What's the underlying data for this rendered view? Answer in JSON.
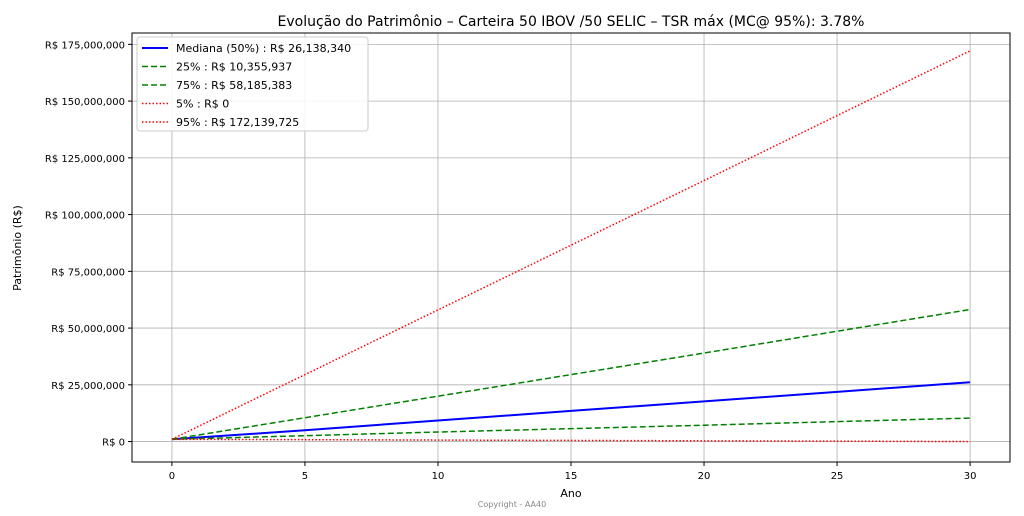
{
  "chart_data": {
    "type": "line",
    "title": "Evolução do Patrimônio – Carteira 50 IBOV /50 SELIC – TSR máx (MC@ 95%): 3.78%",
    "xlabel": "Ano",
    "ylabel": "Patrimônio (R$)",
    "xlim": [
      -1.5,
      31.5
    ],
    "ylim": [
      -9000000,
      180000000
    ],
    "x_ticks": [
      0,
      5,
      10,
      15,
      20,
      25,
      30
    ],
    "y_ticks": [
      0,
      25000000,
      50000000,
      75000000,
      100000000,
      125000000,
      150000000,
      175000000
    ],
    "y_tick_labels": [
      "R$ 0",
      "R$ 25,000,000",
      "R$ 50,000,000",
      "R$ 75,000,000",
      "R$ 100,000,000",
      "R$ 125,000,000",
      "R$ 150,000,000",
      "R$ 175,000,000"
    ],
    "grid": true,
    "legend_position": "top-left",
    "x": [
      0,
      5,
      10,
      15,
      20,
      25,
      30
    ],
    "series": [
      {
        "name": "Mediana (50%) : R$ 26,138,340",
        "color": "#0000ff",
        "style": "solid",
        "values": [
          1000000,
          5000000,
          9300000,
          13500000,
          17700000,
          21900000,
          26138340
        ]
      },
      {
        "name": "25% : R$ 10,355,937",
        "color": "#008000",
        "style": "dashed",
        "values": [
          1000000,
          2600000,
          4200000,
          5700000,
          7200000,
          8800000,
          10355937
        ]
      },
      {
        "name": "75% : R$ 58,185,383",
        "color": "#008000",
        "style": "dashed",
        "values": [
          1000000,
          10500000,
          20000000,
          29500000,
          39000000,
          48600000,
          58185383
        ]
      },
      {
        "name": "5% : R$ 0",
        "color": "#ff0000",
        "style": "dotted",
        "values": [
          1000000,
          830000,
          660000,
          500000,
          330000,
          170000,
          0
        ]
      },
      {
        "name": "95% : R$ 172,139,725",
        "color": "#ff0000",
        "style": "dotted",
        "values": [
          1000000,
          29500000,
          58000000,
          86500000,
          115000000,
          143600000,
          172139725
        ]
      }
    ]
  },
  "footer": {
    "copyright": "Copyright - AA40"
  }
}
